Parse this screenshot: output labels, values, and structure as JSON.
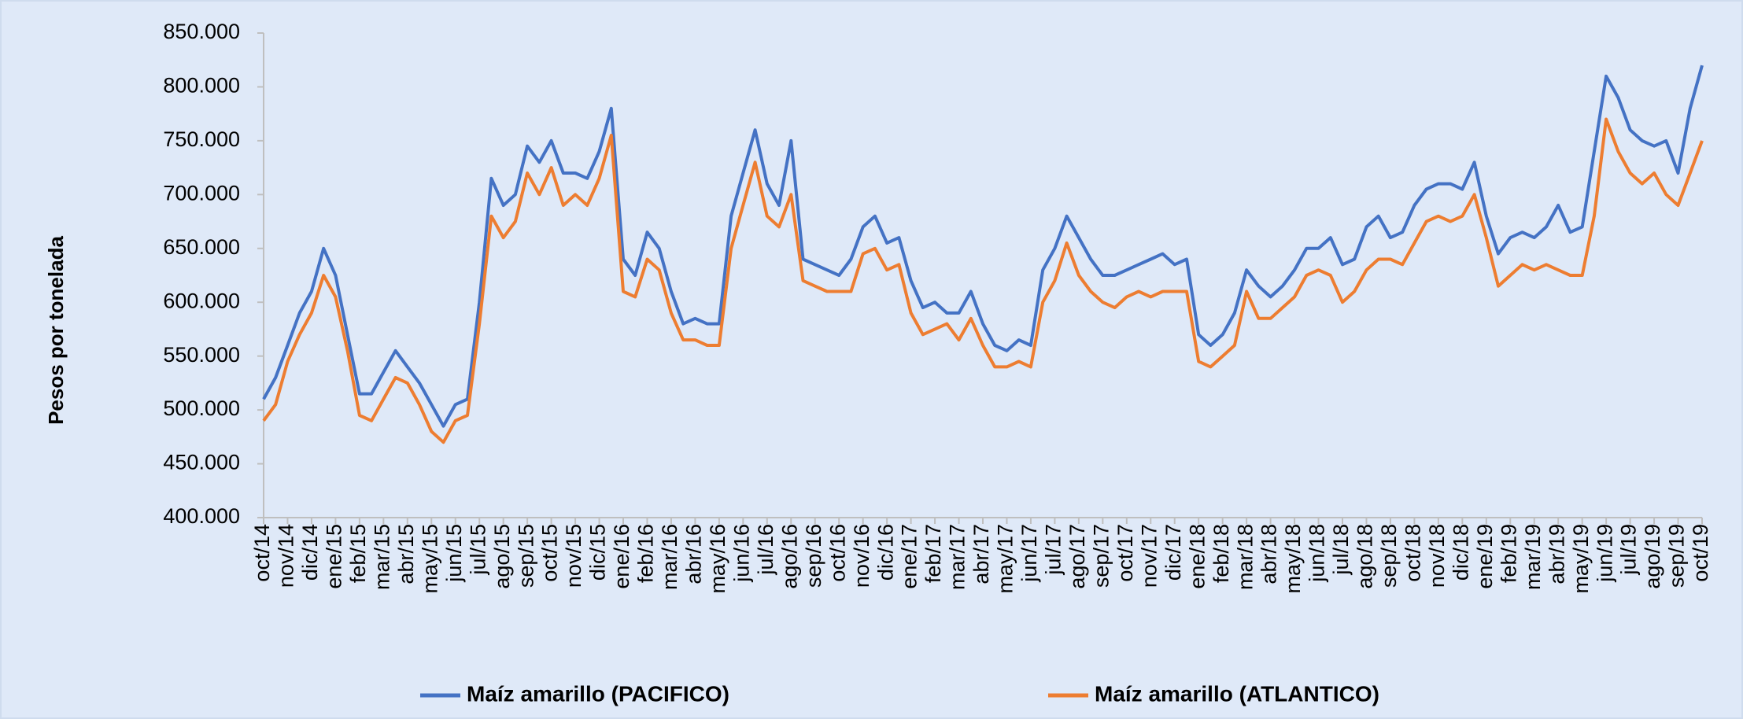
{
  "chart_data": {
    "type": "line",
    "y_label": "Pesos por tonelada",
    "categories": [
      "oct/14",
      null,
      "nov/14",
      null,
      "dic/14",
      null,
      "ene/15",
      null,
      "feb/15",
      null,
      "mar/15",
      null,
      "abr/15",
      null,
      "may/15",
      null,
      "jun/15",
      null,
      "jul/15",
      null,
      "ago/15",
      null,
      "sep/15",
      null,
      "oct/15",
      null,
      "nov/15",
      null,
      "dic/15",
      null,
      "ene/16",
      null,
      "feb/16",
      null,
      "mar/16",
      null,
      "abr/16",
      null,
      "may/16",
      null,
      "jun/16",
      null,
      "jul/16",
      null,
      "ago/16",
      null,
      "sep/16",
      null,
      "oct/16",
      null,
      "nov/16",
      null,
      "dic/16",
      null,
      "ene/17",
      null,
      "feb/17",
      null,
      "mar/17",
      null,
      "abr/17",
      null,
      "may/17",
      null,
      "jun/17",
      null,
      "jul/17",
      null,
      "ago/17",
      null,
      "sep/17",
      null,
      "oct/17",
      null,
      "nov/17",
      null,
      "dic/17",
      null,
      "ene/18",
      null,
      "feb/18",
      null,
      "mar/18",
      null,
      "abr/18",
      null,
      "may/18",
      null,
      "jun/18",
      null,
      "jul/18",
      null,
      "ago/18",
      null,
      "sep/18",
      null,
      "oct/18",
      null,
      "nov/18",
      null,
      "dic/18",
      null,
      "ene/19",
      null,
      "feb/19",
      null,
      "mar/19",
      null,
      "abr/19",
      null,
      "may/19",
      null,
      "jun/19",
      null,
      "jul/19",
      null,
      "ago/19",
      null,
      "sep/19",
      null,
      "oct/19"
    ],
    "series": [
      {
        "name": "Maíz amarillo (PACIFICO)",
        "color": "#4472c4",
        "values": [
          510000,
          530000,
          560000,
          590000,
          610000,
          650000,
          625000,
          570000,
          515000,
          515000,
          535000,
          555000,
          540000,
          525000,
          505000,
          485000,
          505000,
          510000,
          600000,
          715000,
          690000,
          700000,
          745000,
          730000,
          750000,
          720000,
          720000,
          715000,
          740000,
          780000,
          640000,
          625000,
          665000,
          650000,
          610000,
          580000,
          585000,
          580000,
          580000,
          680000,
          720000,
          760000,
          710000,
          690000,
          750000,
          640000,
          635000,
          630000,
          625000,
          640000,
          670000,
          680000,
          655000,
          660000,
          620000,
          595000,
          600000,
          590000,
          590000,
          610000,
          580000,
          560000,
          555000,
          565000,
          560000,
          630000,
          650000,
          680000,
          660000,
          640000,
          625000,
          625000,
          630000,
          635000,
          640000,
          645000,
          635000,
          640000,
          570000,
          560000,
          570000,
          590000,
          630000,
          615000,
          605000,
          615000,
          630000,
          650000,
          650000,
          660000,
          635000,
          640000,
          670000,
          680000,
          660000,
          665000,
          690000,
          705000,
          710000,
          710000,
          705000,
          730000,
          680000,
          645000,
          660000,
          665000,
          660000,
          670000,
          690000,
          665000,
          670000,
          740000,
          810000,
          790000,
          760000,
          750000,
          745000,
          750000,
          720000,
          780000,
          820000
        ]
      },
      {
        "name": "Maíz amarillo (ATLANTICO)",
        "color": "#ed7d31",
        "values": [
          490000,
          505000,
          545000,
          570000,
          590000,
          625000,
          605000,
          555000,
          495000,
          490000,
          510000,
          530000,
          525000,
          505000,
          480000,
          470000,
          490000,
          495000,
          580000,
          680000,
          660000,
          675000,
          720000,
          700000,
          725000,
          690000,
          700000,
          690000,
          715000,
          755000,
          610000,
          605000,
          640000,
          630000,
          590000,
          565000,
          565000,
          560000,
          560000,
          650000,
          690000,
          730000,
          680000,
          670000,
          700000,
          620000,
          615000,
          610000,
          610000,
          610000,
          645000,
          650000,
          630000,
          635000,
          590000,
          570000,
          575000,
          580000,
          565000,
          585000,
          560000,
          540000,
          540000,
          545000,
          540000,
          600000,
          620000,
          655000,
          625000,
          610000,
          600000,
          595000,
          605000,
          610000,
          605000,
          610000,
          610000,
          610000,
          545000,
          540000,
          550000,
          560000,
          610000,
          585000,
          585000,
          595000,
          605000,
          625000,
          630000,
          625000,
          600000,
          610000,
          630000,
          640000,
          640000,
          635000,
          655000,
          675000,
          680000,
          675000,
          680000,
          700000,
          660000,
          615000,
          625000,
          635000,
          630000,
          635000,
          630000,
          625000,
          625000,
          680000,
          770000,
          740000,
          720000,
          710000,
          720000,
          700000,
          690000,
          720000,
          750000
        ]
      }
    ],
    "ylim": [
      400000,
      850000
    ],
    "yticks": [
      {
        "value": 400000,
        "label": "400.000"
      },
      {
        "value": 450000,
        "label": "450.000"
      },
      {
        "value": 500000,
        "label": "500.000"
      },
      {
        "value": 550000,
        "label": "550.000"
      },
      {
        "value": 600000,
        "label": "600.000"
      },
      {
        "value": 650000,
        "label": "650.000"
      },
      {
        "value": 700000,
        "label": "700.000"
      },
      {
        "value": 750000,
        "label": "750.000"
      },
      {
        "value": 800000,
        "label": "800.000"
      },
      {
        "value": 850000,
        "label": "850.000"
      }
    ]
  }
}
